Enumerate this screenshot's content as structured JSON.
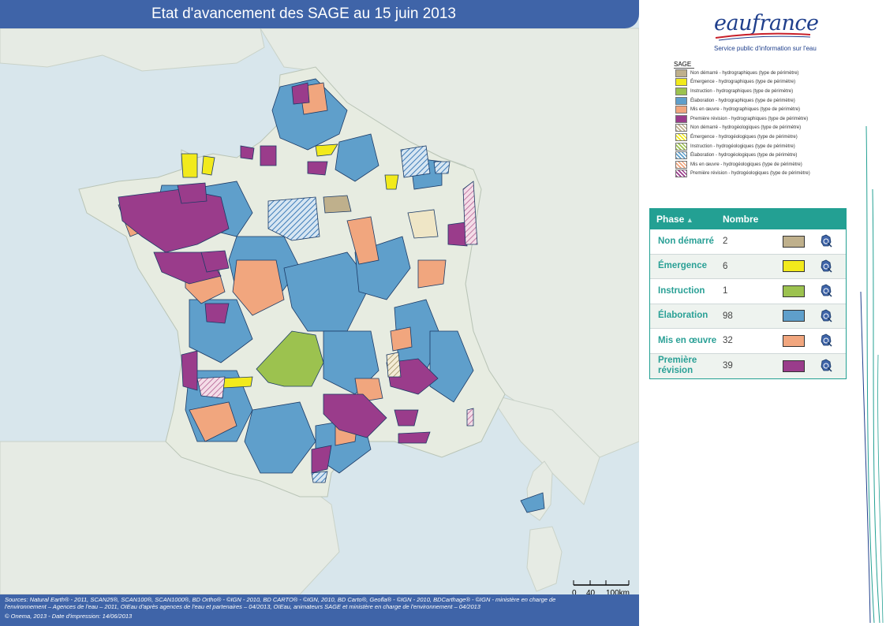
{
  "map": {
    "title": "Etat d'avancement des SAGE au 15 juin 2013",
    "footer_lines": [
      "Sources: Natural Earth® - 2011, SCAN25®, SCAN100®, SCAN1000®, BD Ortho® - ©IGN - 2010, BD CARTO® - ©IGN, 2010, BD Carto®, Geofla® - ©IGN - 2010, BDCarthage® - ©IGN - ministère en charge de",
      "l'environnement – Agences de l'eau – 2011, OIEau d'après agences de l'eau et partenaires – 04/2013, OIEau, animateurs SAGE et ministère en charge de l'environnement – 04/2013",
      "© Onema, 2013 - Date d'impression: 14/06/2013"
    ],
    "scalebar": {
      "tick_0": "0",
      "tick_1": "40",
      "tick_2": "100km"
    }
  },
  "brand": {
    "logo": "eaufrance",
    "tagline": "Service public d'information sur l'eau",
    "logo_color": "#1f3f8c"
  },
  "legend": {
    "title": "SAGE",
    "items": [
      {
        "label": "Non démarré - hydrographiques (type de périmètre)",
        "color": "#bfb08c",
        "hatched": false
      },
      {
        "label": "Émergence - hydrographiques (type de périmètre)",
        "color": "#f2ea1c",
        "hatched": false
      },
      {
        "label": "Instruction - hydrographiques (type de périmètre)",
        "color": "#9cc24f",
        "hatched": false
      },
      {
        "label": "Élaboration - hydrographiques (type de périmètre)",
        "color": "#5f9fcb",
        "hatched": false
      },
      {
        "label": "Mis en œuvre - hydrographiques (type de périmètre)",
        "color": "#f1a67e",
        "hatched": false
      },
      {
        "label": "Première révision - hydrographiques (type de périmètre)",
        "color": "#9a3c8b",
        "hatched": false
      },
      {
        "label": "Non démarré - hydrogéologiques (type de périmètre)",
        "color": "#bfb08c",
        "hatched": true
      },
      {
        "label": "Émergence - hydrogéologiques (type de périmètre)",
        "color": "#f2ea1c",
        "hatched": true
      },
      {
        "label": "Instruction - hydrogéologiques (type de périmètre)",
        "color": "#9cc24f",
        "hatched": true
      },
      {
        "label": "Élaboration - hydrogéologiques (type de périmètre)",
        "color": "#5f9fcb",
        "hatched": true
      },
      {
        "label": "Mis en œuvre - hydrogéologiques (type de périmètre)",
        "color": "#f1a67e",
        "hatched": true
      },
      {
        "label": "Première révision - hydrogéologiques (type de périmètre)",
        "color": "#9a3c8b",
        "hatched": true
      }
    ]
  },
  "phase_table": {
    "col_phase": "Phase",
    "col_count": "Nombre",
    "rows": [
      {
        "phase": "Non démarré",
        "count": "2",
        "color": "#bfb08c"
      },
      {
        "phase": "Émergence",
        "count": "6",
        "color": "#f2ea1c"
      },
      {
        "phase": "Instruction",
        "count": "1",
        "color": "#9cc24f"
      },
      {
        "phase": "Élaboration",
        "count": "98",
        "color": "#5f9fcb"
      },
      {
        "phase": "Mis en œuvre",
        "count": "32",
        "color": "#f1a67e"
      },
      {
        "phase": "Première révision",
        "count": "39",
        "color": "#9a3c8b"
      }
    ]
  }
}
